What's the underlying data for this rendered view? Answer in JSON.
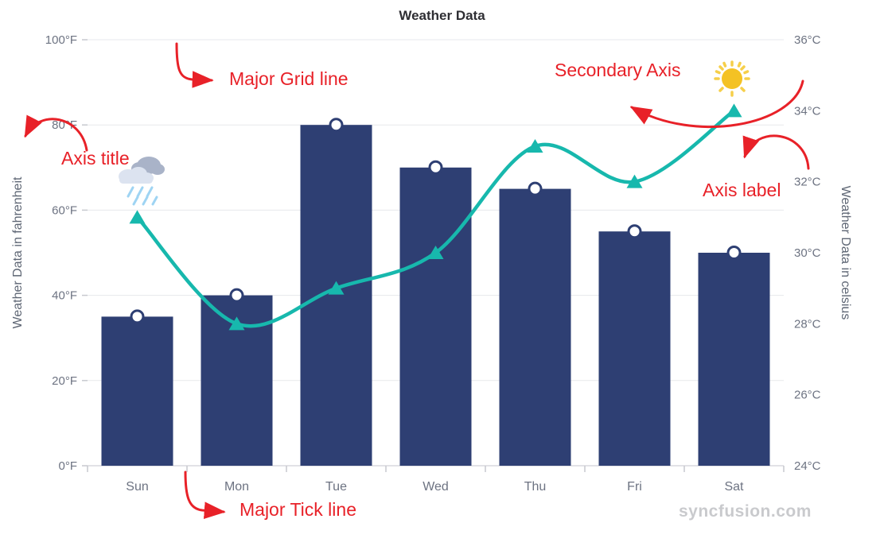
{
  "chart_data": {
    "type": "combo",
    "title": "Weather Data",
    "categories": [
      "Sun",
      "Mon",
      "Tue",
      "Wed",
      "Thu",
      "Fri",
      "Sat"
    ],
    "series": [
      {
        "name": "Weather Data in fahrenheit",
        "type": "column",
        "axis": "primary",
        "values": [
          35,
          40,
          80,
          70,
          65,
          55,
          50
        ],
        "color": "#2e3f73",
        "marker": "circle"
      },
      {
        "name": "Weather Data in celsius",
        "type": "spline",
        "axis": "secondary",
        "values": [
          31,
          28,
          29,
          30,
          33,
          32,
          34
        ],
        "color": "#17b8ad",
        "marker": "triangle"
      }
    ],
    "primary_axis": {
      "title": "Weather Data in fahrenheit",
      "unit": "°F",
      "min": 0,
      "max": 100,
      "interval": 20
    },
    "secondary_axis": {
      "title": "Weather Data in celsius",
      "unit": "°C",
      "min": 24,
      "max": 36,
      "interval": 2
    },
    "grid": true,
    "legend": "none",
    "colors": {
      "grid": "#e7e8ec",
      "axis": "#d8d9dd",
      "tick": "#c7c9cf",
      "label": "#6d7382"
    }
  },
  "annotations": {
    "major_grid_line": "Major Grid line",
    "secondary_axis": "Secondary Axis",
    "axis_title": "Axis title",
    "axis_label": "Axis label",
    "major_tick_line": "Major Tick line",
    "color": "#e82128"
  },
  "icons": {
    "rain_cloud": "rain-cloud-icon",
    "sun": "sun-icon"
  },
  "watermark": "syncfusion.com"
}
